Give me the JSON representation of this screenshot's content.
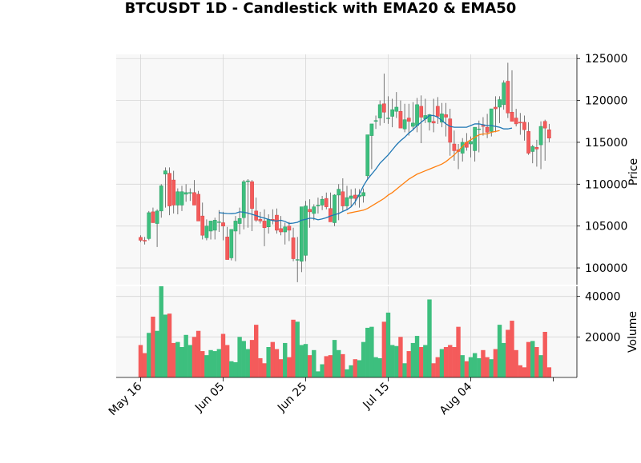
{
  "chart_data": {
    "type": "candlestick",
    "title": "BTCUSDT 1D - Candlestick with EMA20 & EMA50",
    "ylabel_price": "Price",
    "ylabel_volume": "Volume",
    "x_ticks": [
      "May 16",
      "Jun 05",
      "Jun 25",
      "Jul 15",
      "Aug 04"
    ],
    "price_ylim": [
      98000,
      125500
    ],
    "price_ticks": [
      100000,
      105000,
      110000,
      115000,
      120000,
      125000
    ],
    "price_tick_labels": [
      "100000",
      "105000",
      "110000",
      "115000",
      "120000",
      "125000"
    ],
    "volume_ylim": [
      0,
      45000
    ],
    "volume_ticks": [
      20000,
      40000
    ],
    "volume_tick_labels": [
      "20000",
      "40000"
    ],
    "grid": true,
    "style": "yahoo",
    "colors": {
      "up": "#3dbf7e",
      "down": "#f45b5b",
      "ema20": "#1f77b4",
      "ema50": "#ff7f0e",
      "panel_bg": "#f8f8f8",
      "grid": "#d6d6d6"
    },
    "series": [
      {
        "name": "EMA20",
        "start_index": 19,
        "values": [
          106600,
          106550,
          106500,
          106480,
          106520,
          106700,
          106650,
          106550,
          106400,
          106250,
          106080,
          105950,
          105800,
          105650,
          105600,
          105700,
          105550,
          105300,
          105350,
          105450,
          105700,
          105800,
          105950,
          105900,
          105750,
          105850,
          106000,
          106200,
          106350,
          106500,
          106750,
          106950,
          107300,
          107900,
          108800,
          109800,
          110600,
          111200,
          111800,
          112500,
          113000,
          113500,
          114100,
          114700,
          115200,
          115600,
          116100,
          116500,
          117000,
          117400,
          117800,
          118200,
          118200,
          118000,
          117600,
          117200,
          116900,
          116800,
          116800,
          116800,
          116800,
          117000,
          117200,
          117200,
          117100,
          117000,
          117000,
          116900,
          116800,
          116600,
          116600,
          116700
        ]
      },
      {
        "name": "EMA50",
        "start_index": 50,
        "values": [
          106500,
          106600,
          106700,
          106800,
          106900,
          107100,
          107400,
          107700,
          108000,
          108300,
          108700,
          109000,
          109400,
          109800,
          110200,
          110600,
          110900,
          111200,
          111400,
          111600,
          111800,
          112000,
          112200,
          112400,
          112700,
          113100,
          113500,
          114000,
          114500,
          115000,
          115300,
          115600,
          115900,
          116000,
          116000,
          116200,
          116300,
          116400
        ]
      },
      {
        "name": "Volume",
        "values": [
          16000,
          12000,
          22000,
          30000,
          23000,
          45000,
          31000,
          31500,
          17000,
          17500,
          15000,
          21000,
          16000,
          20000,
          23000,
          13000,
          11000,
          13500,
          13000,
          14000,
          21500,
          16000,
          8000,
          7500,
          20000,
          18000,
          14000,
          18500,
          26000,
          9500,
          7000,
          15000,
          17500,
          14000,
          9000,
          17000,
          10000,
          28500,
          27500,
          16000,
          16500,
          11000,
          13500,
          3000,
          6500,
          10500,
          11000,
          18500,
          13500,
          11500,
          4000,
          6000,
          9000,
          8500,
          17500,
          24500,
          25000,
          10000,
          9500,
          27500,
          32000,
          16000,
          15500,
          20000,
          7000,
          13000,
          17000,
          20500,
          15000,
          16000,
          38500,
          7000,
          10000,
          14000,
          15000,
          16000,
          15000,
          25000,
          11000,
          8000,
          10000,
          12000,
          9500,
          13500,
          10000,
          9000,
          14000,
          26000,
          17000,
          23500,
          28000,
          13500,
          6000,
          5000,
          17500,
          18000,
          15000,
          11000,
          22500,
          5000
        ]
      }
    ],
    "ohlc_open": [
      103650,
      103300,
      103500,
      106700,
      105300,
      106800,
      111200,
      111300,
      110500,
      107500,
      107500,
      108800,
      109000,
      109000,
      108800,
      106200,
      103600,
      104400,
      104500,
      105500,
      105400,
      103700,
      101200,
      104400,
      105300,
      106000,
      110300,
      110300,
      106800,
      105800,
      105600,
      104900,
      105800,
      106300,
      104700,
      104300,
      105000,
      103600,
      101000,
      100800,
      101500,
      107000,
      106500,
      107400,
      107500,
      108300,
      107100,
      105400,
      108700,
      109100,
      107400,
      108300,
      108700,
      108500,
      108600,
      111000,
      115800,
      117500,
      117900,
      119600,
      117900,
      118100,
      118700,
      118700,
      116600,
      117900,
      116900,
      117000,
      119300,
      117800,
      117400,
      117500,
      119300,
      117400,
      118300,
      117800,
      114800,
      114100,
      113700,
      115000,
      114800,
      114000,
      116600,
      117000,
      116800,
      116300,
      119200,
      119200,
      119500,
      122300,
      118600,
      117900,
      117400,
      117400,
      116300,
      113900,
      114400,
      114700,
      117500,
      116500
    ],
    "ohlc_high": [
      103900,
      103700,
      106800,
      107200,
      107000,
      110000,
      112000,
      112000,
      111600,
      109500,
      109800,
      110000,
      109500,
      110500,
      109200,
      107800,
      105800,
      105600,
      106000,
      106900,
      106700,
      104900,
      104600,
      106200,
      107200,
      110500,
      110600,
      110500,
      108400,
      106700,
      107000,
      106400,
      107000,
      107100,
      106200,
      105400,
      105500,
      104800,
      103700,
      104800,
      108000,
      108200,
      107600,
      108400,
      108600,
      109000,
      109000,
      108800,
      110000,
      110700,
      109800,
      109400,
      109500,
      109400,
      109500,
      112500,
      116400,
      118200,
      120000,
      123200,
      120500,
      120200,
      121000,
      120000,
      119600,
      119600,
      119800,
      120300,
      120600,
      120200,
      118400,
      120200,
      120400,
      119700,
      119700,
      119000,
      116400,
      114800,
      115500,
      116100,
      115700,
      116800,
      117600,
      118000,
      118400,
      118300,
      120500,
      120500,
      122400,
      124500,
      123600,
      119000,
      118500,
      118200,
      117400,
      114700,
      115300,
      117500,
      117700,
      117200
    ],
    "ohlc_low": [
      103100,
      102800,
      103300,
      105800,
      102500,
      106000,
      107200,
      106300,
      106500,
      106400,
      106800,
      107900,
      108000,
      108200,
      105800,
      103400,
      103300,
      103400,
      103400,
      104300,
      103300,
      102900,
      100900,
      100800,
      104000,
      104600,
      104800,
      104400,
      105500,
      105300,
      102600,
      104100,
      105200,
      104100,
      103900,
      102800,
      103200,
      100800,
      98300,
      99500,
      100800,
      104800,
      105700,
      106500,
      106900,
      107000,
      105500,
      105000,
      105700,
      106800,
      107000,
      107300,
      107500,
      107200,
      107800,
      110500,
      111800,
      116600,
      117000,
      117300,
      117200,
      116800,
      117900,
      116800,
      116200,
      115800,
      116400,
      116200,
      114900,
      117300,
      116400,
      116200,
      117200,
      116800,
      115700,
      113400,
      112800,
      111800,
      112700,
      114000,
      113200,
      112700,
      113800,
      115800,
      115500,
      115700,
      116200,
      117300,
      118900,
      117900,
      117500,
      116900,
      115900,
      115200,
      113500,
      112500,
      112100,
      111800,
      112800,
      115000
    ],
    "ohlc_close": [
      103300,
      103200,
      106600,
      105400,
      106800,
      109800,
      111600,
      107400,
      107500,
      109100,
      109100,
      109000,
      109000,
      107500,
      105600,
      103900,
      105000,
      105600,
      105700,
      105500,
      105000,
      101000,
      104600,
      105600,
      105900,
      110300,
      110400,
      107100,
      105700,
      105600,
      104800,
      105800,
      105700,
      104500,
      104300,
      104900,
      104500,
      101100,
      101000,
      107300,
      107400,
      106700,
      107300,
      107500,
      108200,
      107300,
      105500,
      108700,
      109400,
      107400,
      108400,
      108600,
      108300,
      108700,
      109000,
      115900,
      117200,
      117600,
      119500,
      118600,
      117900,
      118900,
      119200,
      116700,
      117700,
      117500,
      117300,
      119500,
      118000,
      118200,
      118300,
      117300,
      118100,
      118400,
      118000,
      115000,
      114000,
      113900,
      115000,
      114400,
      115100,
      116800,
      116600,
      116900,
      116200,
      119000,
      119000,
      120100,
      122100,
      118500,
      117500,
      117200,
      117300,
      116500,
      113700,
      114500,
      114200,
      116900,
      116700,
      115500
    ]
  }
}
